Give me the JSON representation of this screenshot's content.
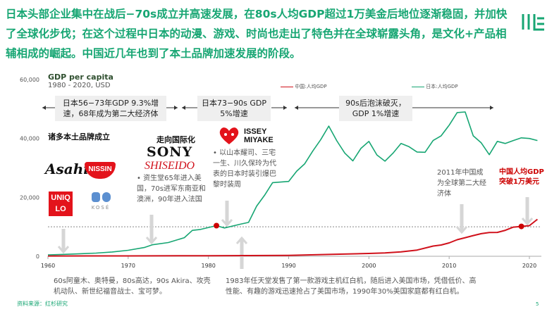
{
  "title": "日本头部企业集中在战后−70s成立并高速发展，在80s人均GDP超过1万美金后地位逐渐稳固，并加快了全球化步伐；在这个过程中日本的动漫、游戏、时尚也走出了特色并在全球崭露头角，是文化+产品相辅相成的崛起。中国近几年也到了本土品牌加速发展的阶段。",
  "chart_data": {
    "type": "line",
    "title": "GDP per capita",
    "subtitle": "1980 -  2020, USD",
    "xlim": [
      1960,
      2021
    ],
    "ylim": [
      0,
      60000
    ],
    "xticks": [
      1960,
      1970,
      1980,
      1990,
      2000,
      2010,
      2020
    ],
    "yticks": [
      0,
      20000,
      40000,
      60000
    ],
    "ytick_labels": [
      "0",
      "20,000",
      "40,000",
      "60,000"
    ],
    "reference_line": 10000,
    "legend_placement": "top",
    "series": [
      {
        "name": "中国:人均GDP",
        "color": "#d0111b",
        "x": [
          1960,
          1970,
          1980,
          1990,
          1995,
          2000,
          2002,
          2004,
          2006,
          2008,
          2009,
          2010,
          2011,
          2012,
          2013,
          2014,
          2015,
          2016,
          2017,
          2018,
          2019,
          2020,
          2021
        ],
        "values": [
          90,
          113,
          195,
          318,
          610,
          959,
          1149,
          1509,
          2099,
          3468,
          3832,
          4550,
          5618,
          6300,
          7020,
          7678,
          8066,
          8094,
          8817,
          9905,
          10144,
          10409,
          12556
        ]
      },
      {
        "name": "日本:人均GDP",
        "color": "#17a673",
        "x": [
          1960,
          1962,
          1964,
          1966,
          1968,
          1970,
          1972,
          1973,
          1975,
          1977,
          1978,
          1979,
          1981,
          1982,
          1984,
          1985,
          1986,
          1987,
          1988,
          1990,
          1991,
          1992,
          1993,
          1994,
          1995,
          1996,
          1997,
          1998,
          1999,
          2000,
          2001,
          2002,
          2003,
          2004,
          2005,
          2006,
          2007,
          2008,
          2009,
          2010,
          2011,
          2012,
          2013,
          2014,
          2015,
          2016,
          2017,
          2018,
          2019,
          2020,
          2021
        ],
        "values": [
          479,
          640,
          860,
          1070,
          1450,
          2040,
          2960,
          3900,
          4650,
          6300,
          8800,
          9100,
          10400,
          9600,
          10900,
          11500,
          17000,
          20700,
          25000,
          25400,
          28900,
          31400,
          35700,
          39600,
          44200,
          39200,
          35000,
          32400,
          36600,
          39000,
          34400,
          32300,
          35000,
          38300,
          37200,
          35400,
          35300,
          39300,
          40900,
          44500,
          48800,
          49000,
          40900,
          38500,
          34500,
          39000,
          38300,
          39300,
          40200,
          40000,
          39300
        ]
      }
    ],
    "markers": [
      {
        "series": "日本:人均GDP",
        "x": 1981,
        "y": 10400
      },
      {
        "series": "中国:人均GDP",
        "x": 2019,
        "y": 10144
      }
    ]
  },
  "phases": [
    "日本56−73年GDP 9.3%增速，68年成为第二大经济体",
    "日本73−90s GDP 5%增速",
    "90s后泡沫破灭，GDP 1%增速"
  ],
  "labels": {
    "brands": "诸多本土品牌成立",
    "intl": "走向国际化"
  },
  "logos": [
    "Asahi",
    "NISSIN",
    "UNIQLO",
    "KOSÉ",
    "SONY",
    "SHISEIDO",
    "ISSEY MIYAKE"
  ],
  "notes": {
    "shiseido": "资生堂65年进入美国，70s进军东南亚和澳洲，90年进入法国",
    "fashion": "以山本耀司、三宅一生、川久保玲为代表的日本时装引爆巴黎时装周",
    "china2011": "2011年中国成为全球第二大经济体",
    "china10k": "中国人均GDP突破1万美元",
    "anime": "60s阿童木、奥特曼，80s高达，90s Akira、攻壳机动队、新世纪福音战士、宝可梦。",
    "nintendo": "1983年任天堂发售了第一款游戏主机红白机，随后进入美国市场，凭借低价、高性能、有趣的游戏迅速抢占了美国市场，1990年30%美国家庭都有红白机。"
  },
  "source": "资料来源：红杉研究",
  "page": "5"
}
